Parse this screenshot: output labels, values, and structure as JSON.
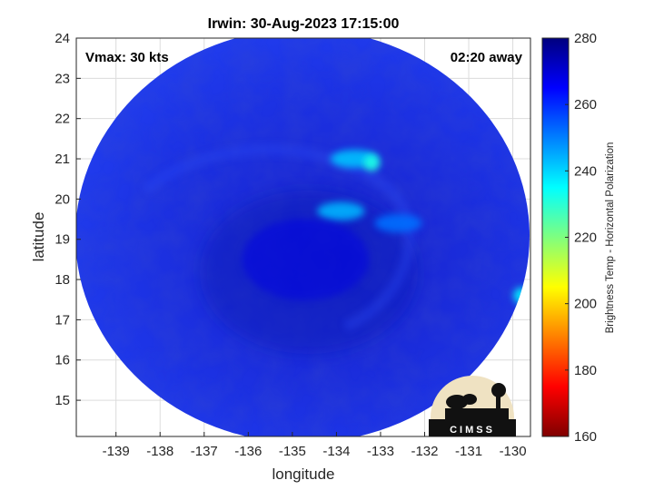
{
  "chart_data": {
    "type": "heatmap",
    "title": "Irwin: 30-Aug-2023 17:15:00",
    "xlabel": "longitude",
    "ylabel": "latitude",
    "xlim": [
      -139.9,
      -129.6
    ],
    "ylim": [
      14.1,
      24.0
    ],
    "x_ticks": [
      -139,
      -138,
      -137,
      -136,
      -135,
      -134,
      -133,
      -132,
      -131,
      -130
    ],
    "y_ticks": [
      15,
      16,
      17,
      18,
      19,
      20,
      21,
      22,
      23,
      24
    ],
    "grid": true,
    "colorbar": {
      "label": "Brightness Temp - Horizontal Polarization",
      "range": [
        160,
        280
      ],
      "ticks": [
        160,
        180,
        200,
        220,
        240,
        260,
        280
      ],
      "colormap": "jet"
    },
    "annotations": {
      "vmax": "Vmax: 30 kts",
      "away": "02:20 away"
    },
    "logo_text": "CIMSS",
    "swath": {
      "background_temp": 262,
      "features": [
        {
          "lon": -133.6,
          "lat": 21.0,
          "temp": 242
        },
        {
          "lon": -133.2,
          "lat": 20.9,
          "temp": 232
        },
        {
          "lon": -133.9,
          "lat": 19.7,
          "temp": 244
        },
        {
          "lon": -132.6,
          "lat": 19.4,
          "temp": 252
        },
        {
          "lon": -129.8,
          "lat": 17.6,
          "temp": 236
        },
        {
          "lon": -134.7,
          "lat": 18.5,
          "temp": 268
        }
      ]
    }
  }
}
